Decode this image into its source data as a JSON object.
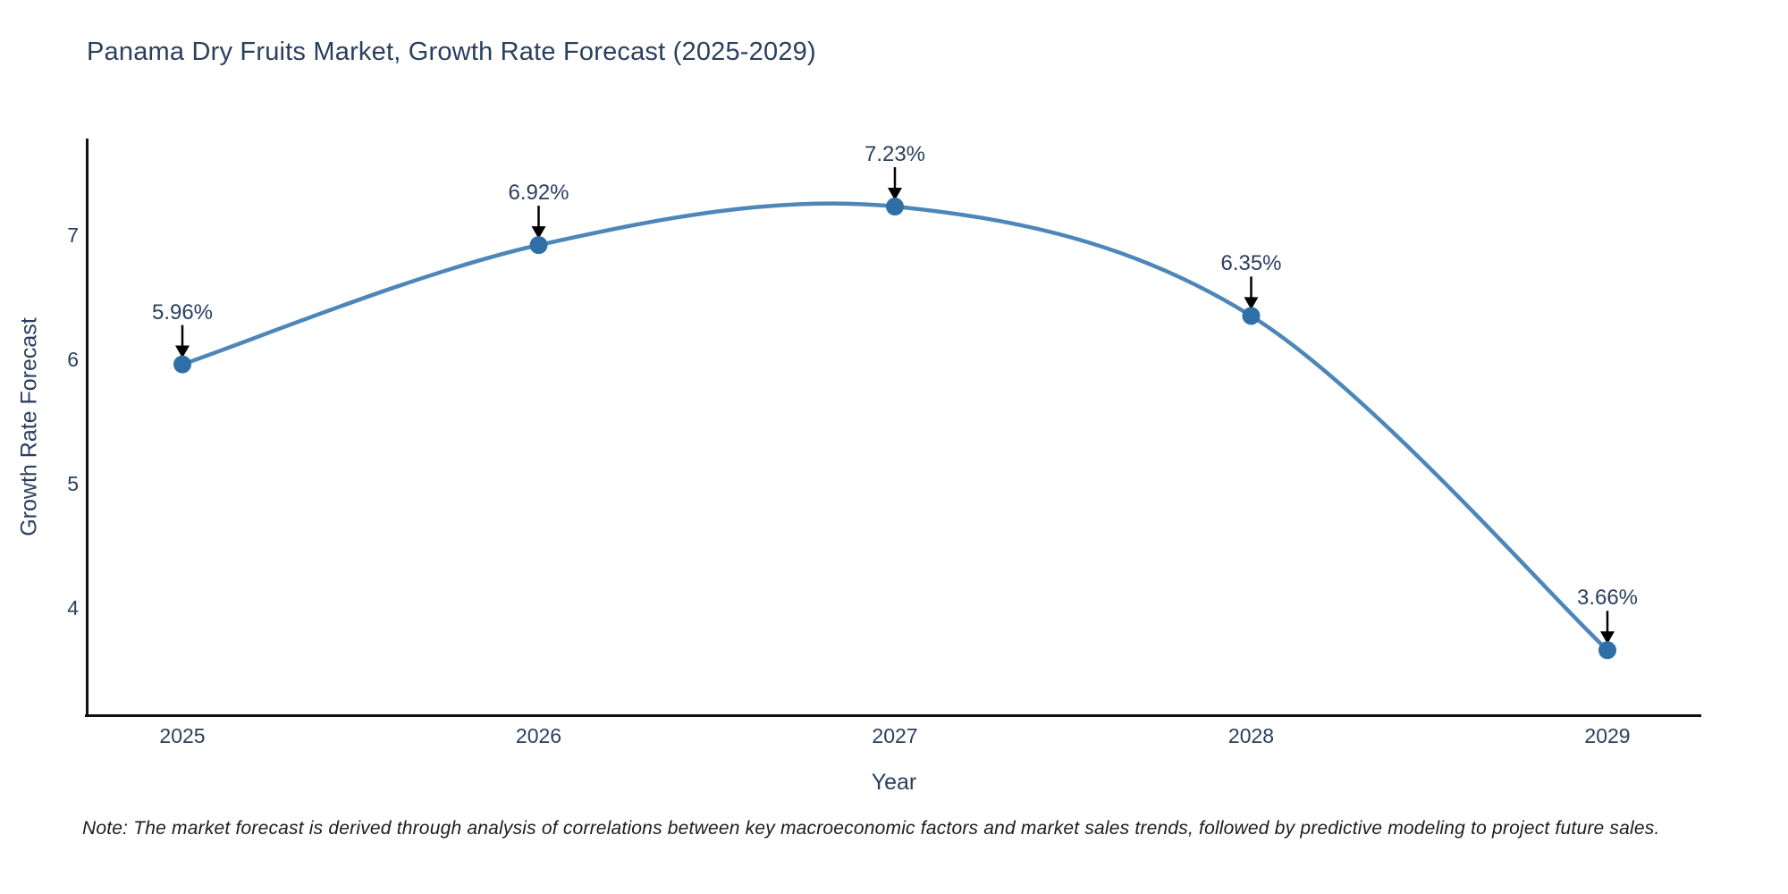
{
  "chart_data": {
    "type": "line",
    "title": "Panama Dry Fruits Market, Growth Rate Forecast (2025-2029)",
    "xlabel": "Year",
    "ylabel": "Growth Rate Forecast",
    "categories": [
      "2025",
      "2026",
      "2027",
      "2028",
      "2029"
    ],
    "series": [
      {
        "name": "Growth Rate Forecast",
        "values": [
          5.96,
          6.92,
          7.23,
          6.35,
          3.66
        ]
      }
    ],
    "data_labels": [
      "5.96%",
      "6.92%",
      "7.23%",
      "6.35%",
      "3.66%"
    ],
    "yticks": [
      4,
      5,
      6,
      7
    ],
    "ylim": [
      3.14,
      7.78
    ],
    "line_shape": "spline",
    "grid": false,
    "legend": false,
    "colors": {
      "line": "#4d86b8",
      "marker": "#2f6fa8",
      "arrow": "#000000",
      "text": "#2a3f5f",
      "axis": "#111111",
      "background": "#ffffff"
    }
  },
  "note": "Note: The market forecast is derived through analysis of correlations between key macroeconomic factors and market sales trends, followed by predictive modeling to project future sales."
}
